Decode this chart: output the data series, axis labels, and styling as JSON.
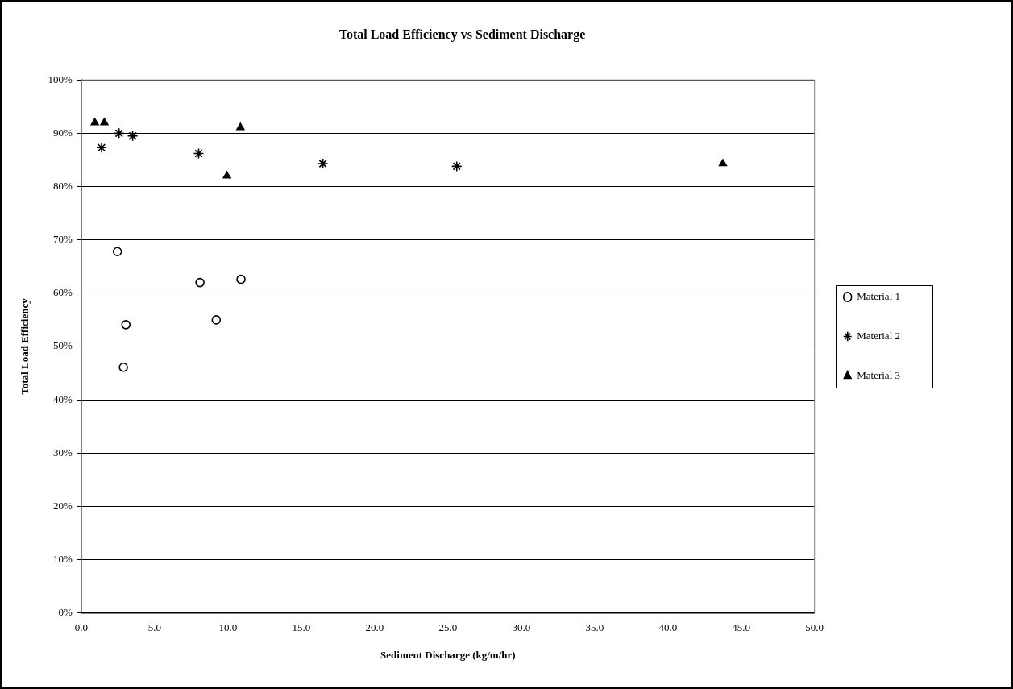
{
  "chart_data": {
    "type": "scatter",
    "title": "Total Load Efficiency vs Sediment Discharge",
    "xlabel": "Sediment Discharge (kg/m/hr)",
    "ylabel": "Total Load Efficiency",
    "xlim": [
      0,
      50
    ],
    "xticks": [
      {
        "value": 0,
        "label": "0.0"
      },
      {
        "value": 5,
        "label": "5.0"
      },
      {
        "value": 10,
        "label": "10.0"
      },
      {
        "value": 15,
        "label": "15.0"
      },
      {
        "value": 20,
        "label": "20.0"
      },
      {
        "value": 25,
        "label": "25.0"
      },
      {
        "value": 30,
        "label": "30.0"
      },
      {
        "value": 35,
        "label": "35.0"
      },
      {
        "value": 40,
        "label": "40.0"
      },
      {
        "value": 45,
        "label": "45.0"
      },
      {
        "value": 50,
        "label": "50.0"
      }
    ],
    "ylim": [
      0,
      100
    ],
    "yticks": [
      {
        "value": 0,
        "label": "0%"
      },
      {
        "value": 10,
        "label": "10%"
      },
      {
        "value": 20,
        "label": "20%"
      },
      {
        "value": 30,
        "label": "30%"
      },
      {
        "value": 40,
        "label": "40%"
      },
      {
        "value": 50,
        "label": "50%"
      },
      {
        "value": 60,
        "label": "60%"
      },
      {
        "value": 70,
        "label": "70%"
      },
      {
        "value": 80,
        "label": "80%"
      },
      {
        "value": 90,
        "label": "90%"
      },
      {
        "value": 100,
        "label": "100%"
      }
    ],
    "grid": "y",
    "legend": "right",
    "series": [
      {
        "name": "Material 1",
        "color": "#000000",
        "marker": "circle",
        "x": [
          2.46,
          3.04,
          2.87,
          8.09,
          9.2,
          10.89
        ],
        "values": [
          67.8,
          54.1,
          46.1,
          62.0,
          55.0,
          62.6
        ]
      },
      {
        "name": "Material 2",
        "color": "#000000",
        "marker": "cross",
        "x": [
          1.38,
          2.57,
          3.5,
          8.0,
          16.47,
          25.6
        ],
        "values": [
          87.3,
          90.0,
          89.5,
          86.2,
          84.3,
          83.8
        ]
      },
      {
        "name": "Material 3",
        "color": "#000000",
        "marker": "triangle",
        "x": [
          0.92,
          1.57,
          10.85,
          9.93,
          43.75
        ],
        "values": [
          92.0,
          92.0,
          91.1,
          82.0,
          84.3
        ]
      }
    ]
  }
}
